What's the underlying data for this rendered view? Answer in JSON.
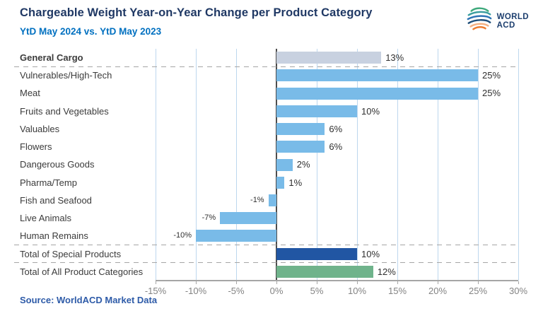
{
  "page": {
    "title": "Chargeable Weight Year-on-Year Change per Product Category",
    "subtitle": "YtD May 2024 vs. YtD May 2023",
    "source": "Source: WorldACD Market Data"
  },
  "logo": {
    "line1": "WORLD",
    "line2": "ACD",
    "text_color": "#1C3E6E",
    "arc_colors": [
      "#3FA97C",
      "#3D9FA0",
      "#2E74B5",
      "#1F4E79",
      "#F4B183",
      "#ED7D31"
    ]
  },
  "chart_data": {
    "type": "bar",
    "orientation": "horizontal",
    "title": "Chargeable Weight Year-on-Year Change per Product Category",
    "subtitle": "YtD May 2024 vs. YtD May 2023",
    "categories": [
      "General Cargo",
      "Vulnerables/High-Tech",
      "Meat",
      "Fruits and Vegetables",
      "Valuables",
      "Flowers",
      "Dangerous Goods",
      "Pharma/Temp",
      "Fish and Seafood",
      "Live Animals",
      "Human Remains",
      "Total of Special Products",
      "Total of All Product Categories"
    ],
    "values": [
      13,
      25,
      25,
      10,
      6,
      6,
      2,
      1,
      -1,
      -7,
      -10,
      10,
      12
    ],
    "value_labels": [
      "13%",
      "25%",
      "25%",
      "10%",
      "6%",
      "6%",
      "2%",
      "1%",
      "-1%",
      "-7%",
      "-10%",
      "10%",
      "12%"
    ],
    "xlabel": "",
    "ylabel": "",
    "xlim": [
      -15,
      30
    ],
    "x_tick_values": [
      -15,
      -10,
      -5,
      0,
      5,
      10,
      15,
      20,
      25,
      30
    ],
    "x_tick_labels": [
      "-15%",
      "-10%",
      "-5%",
      "0%",
      "5%",
      "10%",
      "15%",
      "20%",
      "25%",
      "30%"
    ],
    "grid": "vertical",
    "legend_position": "none",
    "separators_after_indices": [
      0,
      10,
      11
    ],
    "bold_category_indices": [
      0
    ],
    "bar_color_default": "#79BBE8",
    "bar_color_overrides": {
      "0": "#C8D1E0",
      "11": "#2156A3",
      "12": "#6FB38B"
    },
    "gridline_color": "#BDD7EE",
    "zero_line_color": "#4D4D4D",
    "axis_line_color": "#A6A6A6",
    "separator_color": "#A6A6A6",
    "value_label_color": "#303030",
    "tick_label_color": "#838383"
  }
}
